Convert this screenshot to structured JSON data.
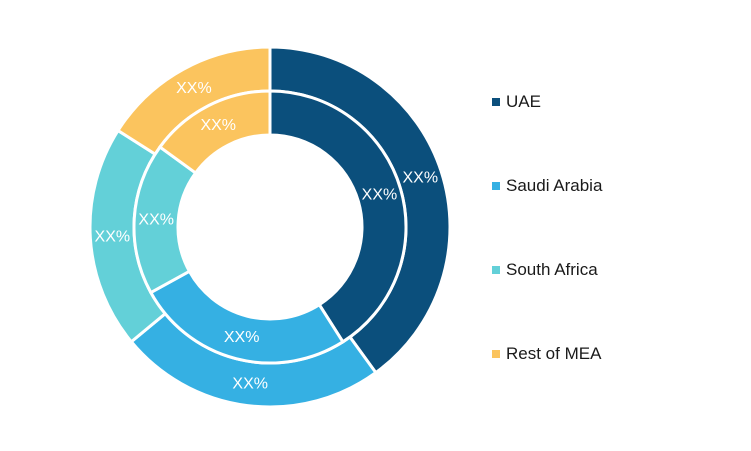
{
  "chart_data": {
    "type": "pie",
    "title": "",
    "categories": [
      "UAE",
      "Saudi Arabia",
      "South Africa",
      "Rest of MEA"
    ],
    "series": [
      {
        "values": [
          40,
          24,
          20,
          16
        ],
        "labels": [
          "XX%",
          "XX%",
          "XX%",
          "XX%"
        ]
      },
      {
        "values": [
          41,
          26,
          18,
          15
        ],
        "labels": [
          "XX%",
          "XX%",
          "XX%",
          "XX%"
        ]
      }
    ],
    "colors": [
      "#0b4f7c",
      "#35b0e3",
      "#63d0d8",
      "#fbc45e"
    ],
    "legend_position": "right",
    "style": "double-donut"
  }
}
